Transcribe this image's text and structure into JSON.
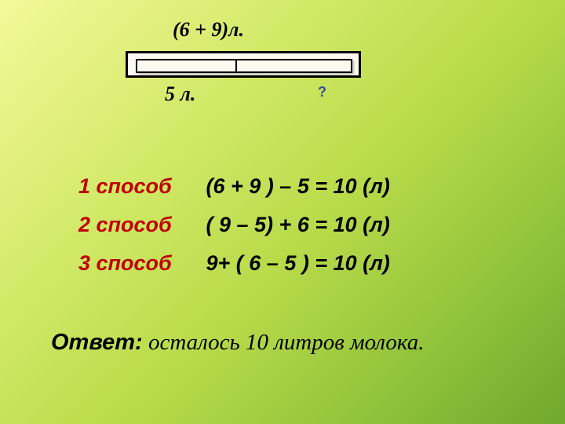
{
  "diagram": {
    "top_label": "(6 + 9)л.",
    "bottom_left_label": "5 л.",
    "question_mark": "?",
    "bar_split_percent": 46,
    "bar_border_color": "#000000",
    "bar_fill_color": "#fafaf0",
    "qmark_color": "#3a4a9a"
  },
  "methods": [
    {
      "name": "1 способ",
      "expr": "(6 + 9 ) – 5 = 10 (л)"
    },
    {
      "name": "2 способ",
      "expr": "( 9 – 5) + 6 = 10 (л)"
    },
    {
      "name": "3 способ",
      "expr": " 9+ ( 6 – 5 ) = 10 (л)"
    }
  ],
  "answer": {
    "label": "Ответ:",
    "text": " осталось 10 литров молока."
  },
  "style": {
    "method_name_color": "#c00000",
    "method_expr_color": "#000000",
    "main_fontsize_pt": 20,
    "answer_fontsize_pt": 22,
    "background_gradient": [
      "#f4f89a",
      "#d4ea6a",
      "#b8db4a",
      "#8fc23a",
      "#6fa82e"
    ]
  }
}
